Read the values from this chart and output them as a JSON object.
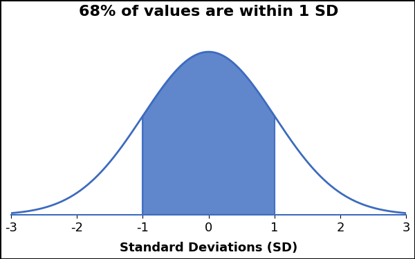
{
  "title": "68% of values are within 1 SD",
  "xlabel": "Standard Deviations (SD)",
  "xlim": [
    -3,
    3
  ],
  "xticks": [
    -3,
    -2,
    -1,
    0,
    1,
    2,
    3
  ],
  "shade_from": -1,
  "shade_to": 1,
  "curve_color": "#3d6bbf",
  "fill_color": "#4472c4",
  "fill_alpha": 0.85,
  "line_width": 2.0,
  "background_color": "#ffffff",
  "title_fontsize": 16,
  "xlabel_fontsize": 13,
  "tick_fontsize": 13
}
